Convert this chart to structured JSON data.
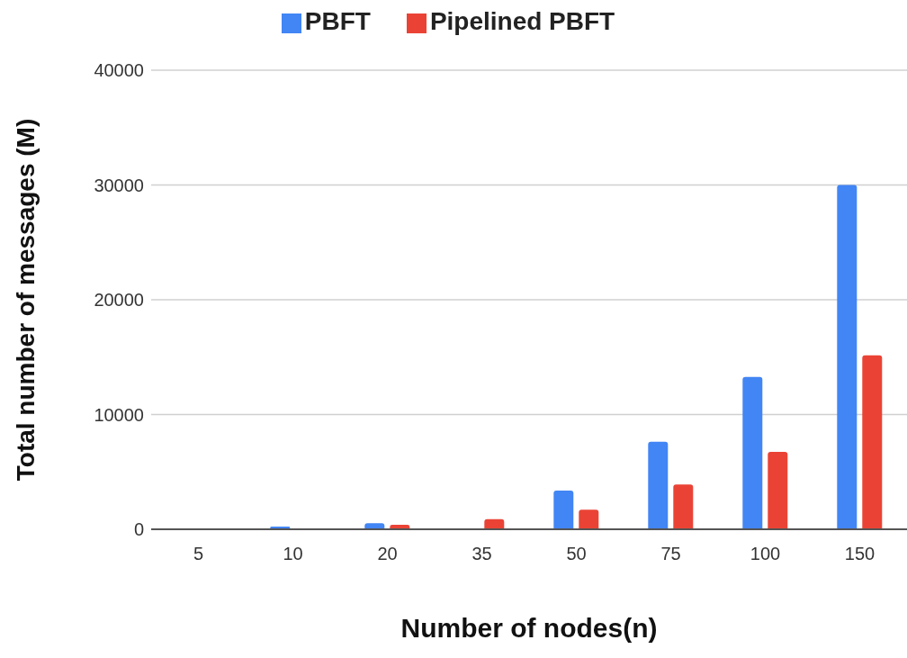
{
  "chart_data": {
    "type": "bar",
    "xlabel": "Number of nodes(n)",
    "ylabel": "Total number of messages (M)",
    "categories": [
      "5",
      "10",
      "20",
      "35",
      "50",
      "75",
      "100",
      "150"
    ],
    "series": [
      {
        "name": "PBFT",
        "color": "#4285f4",
        "values": [
          0,
          230,
          520,
          0,
          3380,
          7620,
          13280,
          30000
        ]
      },
      {
        "name": "Pipelined PBFT",
        "color": "#ea4335",
        "values": [
          0,
          0,
          390,
          890,
          1700,
          3900,
          6750,
          15150
        ]
      }
    ],
    "ylim": [
      0,
      40000
    ],
    "yticks": [
      0,
      10000,
      20000,
      30000,
      40000
    ],
    "grid": "y",
    "legend": "top"
  }
}
